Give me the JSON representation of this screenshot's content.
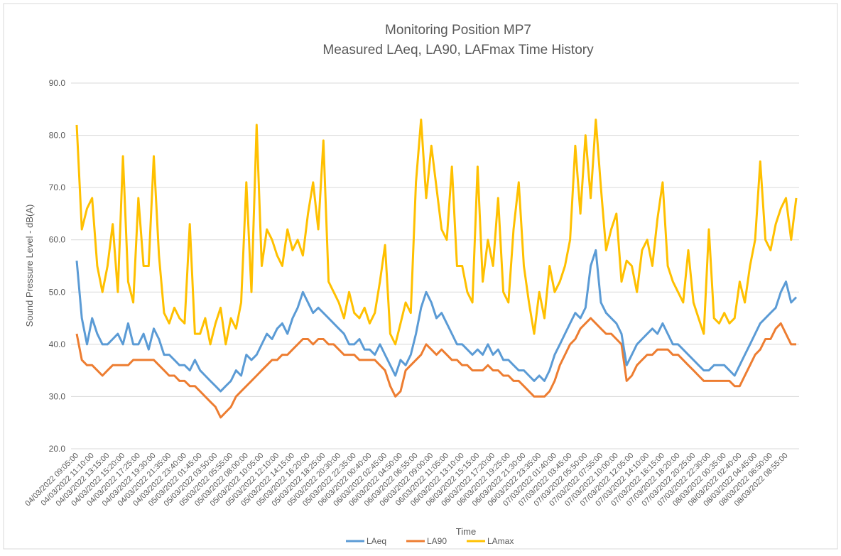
{
  "chart_data": {
    "type": "line",
    "title": "Monitoring Position MP7",
    "subtitle": "Measured LAeq, LA90, LAFmax Time History",
    "y_axis_label": "Sound Pressure Level - dB(A)",
    "x_axis_label": "Time",
    "ylim": [
      20,
      90
    ],
    "yticks": [
      {
        "value": 20,
        "label": "20.0"
      },
      {
        "value": 30,
        "label": "30.0"
      },
      {
        "value": 40,
        "label": "40.0"
      },
      {
        "value": 50,
        "label": "50.0"
      },
      {
        "value": 60,
        "label": "60.0"
      },
      {
        "value": 70,
        "label": "70.0"
      },
      {
        "value": 80,
        "label": "80.0"
      },
      {
        "value": 90,
        "label": "90.0"
      }
    ],
    "grid": true,
    "legend": "bottom",
    "categories": [
      "04/03/2022 09:05:00",
      null,
      null,
      "04/03/2022 11:10:00",
      null,
      null,
      "04/03/2022 13:15:00",
      null,
      null,
      "04/03/2022 15:20:00",
      null,
      null,
      "04/03/2022 17:25:00",
      null,
      null,
      "04/03/2022 19:30:00",
      null,
      null,
      "04/03/2022 21:35:00",
      null,
      null,
      "04/03/2022 23:40:00",
      null,
      null,
      "05/03/2022 01:45:00",
      null,
      null,
      "05/03/2022 03:50:00",
      null,
      null,
      "05/03/2022 05:55:00",
      null,
      null,
      "05/03/2022 08:00:00",
      null,
      null,
      "05/03/2022 10:05:00",
      null,
      null,
      "05/03/2022 12:10:00",
      null,
      null,
      "05/03/2022 14:15:00",
      null,
      null,
      "05/03/2022 16:20:00",
      null,
      null,
      "05/03/2022 18:25:00",
      null,
      null,
      "05/03/2022 20:30:00",
      null,
      null,
      "05/03/2022 22:35:00",
      null,
      null,
      "06/03/2022 00:40:00",
      null,
      null,
      "06/03/2022 02:45:00",
      null,
      null,
      "06/03/2022 04:50:00",
      null,
      null,
      "06/03/2022 06:55:00",
      null,
      null,
      "06/03/2022 09:00:00",
      null,
      null,
      "06/03/2022 11:05:00",
      null,
      null,
      "06/03/2022 13:10:00",
      null,
      null,
      "06/03/2022 15:15:00",
      null,
      null,
      "06/03/2022 17:20:00",
      null,
      null,
      "06/03/2022 19:25:00",
      null,
      null,
      "06/03/2022 21:30:00",
      null,
      null,
      "06/03/2022 23:35:00",
      null,
      null,
      "07/03/2022 01:40:00",
      null,
      null,
      "07/03/2022 03:45:00",
      null,
      null,
      "07/03/2022 05:50:00",
      null,
      null,
      "07/03/2022 07:55:00",
      null,
      null,
      "07/03/2022 10:00:00",
      null,
      null,
      "07/03/2022 12:05:00",
      null,
      null,
      "07/03/2022 14:10:00",
      null,
      null,
      "07/03/2022 16:15:00",
      null,
      null,
      "07/03/2022 18:20:00",
      null,
      null,
      "07/03/2022 20:25:00",
      null,
      null,
      "07/03/2022 22:30:00",
      null,
      null,
      "08/03/2022 00:35:00",
      null,
      null,
      "08/03/2022 02:40:00",
      null,
      null,
      "08/03/2022 04:45:00",
      null,
      null,
      "08/03/2022 06:50:00",
      null,
      null,
      "08/03/2022 08:55:00",
      null,
      null
    ],
    "series": [
      {
        "name": "LAeq",
        "color": "#5b9bd5",
        "values": [
          56,
          45,
          40,
          45,
          42,
          40,
          40,
          41,
          42,
          40,
          44,
          40,
          40,
          42,
          39,
          43,
          41,
          38,
          38,
          37,
          36,
          36,
          35,
          37,
          35,
          34,
          33,
          32,
          31,
          32,
          33,
          35,
          34,
          38,
          37,
          38,
          40,
          42,
          41,
          43,
          44,
          42,
          45,
          47,
          50,
          48,
          46,
          47,
          46,
          45,
          44,
          43,
          42,
          40,
          40,
          41,
          39,
          39,
          38,
          40,
          38,
          36,
          34,
          37,
          36,
          38,
          42,
          47,
          50,
          48,
          45,
          46,
          44,
          42,
          40,
          40,
          39,
          38,
          39,
          38,
          40,
          38,
          39,
          37,
          37,
          36,
          35,
          35,
          34,
          33,
          34,
          33,
          35,
          38,
          40,
          42,
          44,
          46,
          45,
          47,
          55,
          58,
          48,
          46,
          45,
          44,
          42,
          36,
          38,
          40,
          41,
          42,
          43,
          42,
          44,
          42,
          40,
          40,
          39,
          38,
          37,
          36,
          35,
          35,
          36,
          36,
          36,
          35,
          34,
          36,
          38,
          40,
          42,
          44,
          45,
          46,
          47,
          50,
          52,
          48,
          49
        ]
      },
      {
        "name": "LA90",
        "color": "#ed7d31",
        "values": [
          42,
          37,
          36,
          36,
          35,
          34,
          35,
          36,
          36,
          36,
          36,
          37,
          37,
          37,
          37,
          37,
          36,
          35,
          34,
          34,
          33,
          33,
          32,
          32,
          31,
          30,
          29,
          28,
          26,
          27,
          28,
          30,
          31,
          32,
          33,
          34,
          35,
          36,
          37,
          37,
          38,
          38,
          39,
          40,
          41,
          41,
          40,
          41,
          41,
          40,
          40,
          39,
          38,
          38,
          38,
          37,
          37,
          37,
          37,
          36,
          35,
          32,
          30,
          31,
          35,
          36,
          37,
          38,
          40,
          39,
          38,
          39,
          38,
          37,
          37,
          36,
          36,
          35,
          35,
          35,
          36,
          35,
          35,
          34,
          34,
          33,
          33,
          32,
          31,
          30,
          30,
          30,
          31,
          33,
          36,
          38,
          40,
          41,
          43,
          44,
          45,
          44,
          43,
          42,
          42,
          41,
          40,
          33,
          34,
          36,
          37,
          38,
          38,
          39,
          39,
          39,
          38,
          38,
          37,
          36,
          35,
          34,
          33,
          33,
          33,
          33,
          33,
          33,
          32,
          32,
          34,
          36,
          38,
          39,
          41,
          41,
          43,
          44,
          42,
          40,
          40
        ]
      },
      {
        "name": "LAmax",
        "color": "#ffc000",
        "values": [
          82,
          62,
          66,
          68,
          55,
          50,
          55,
          63,
          50,
          76,
          52,
          48,
          68,
          55,
          55,
          76,
          57,
          46,
          44,
          47,
          45,
          44,
          63,
          42,
          42,
          45,
          40,
          44,
          47,
          40,
          45,
          43,
          48,
          71,
          50,
          82,
          55,
          62,
          60,
          57,
          55,
          62,
          58,
          60,
          57,
          65,
          71,
          62,
          79,
          52,
          50,
          48,
          45,
          50,
          46,
          45,
          47,
          44,
          46,
          52,
          59,
          42,
          40,
          44,
          48,
          46,
          71,
          83,
          68,
          78,
          70,
          62,
          60,
          74,
          55,
          55,
          50,
          48,
          74,
          52,
          60,
          55,
          68,
          50,
          48,
          62,
          71,
          55,
          48,
          42,
          50,
          45,
          55,
          50,
          52,
          55,
          60,
          78,
          65,
          80,
          68,
          83,
          70,
          58,
          62,
          65,
          52,
          56,
          55,
          50,
          58,
          60,
          55,
          64,
          71,
          55,
          52,
          50,
          48,
          58,
          48,
          45,
          42,
          62,
          45,
          44,
          46,
          44,
          45,
          52,
          48,
          55,
          60,
          75,
          60,
          58,
          63,
          66,
          68,
          60,
          68
        ]
      }
    ]
  }
}
